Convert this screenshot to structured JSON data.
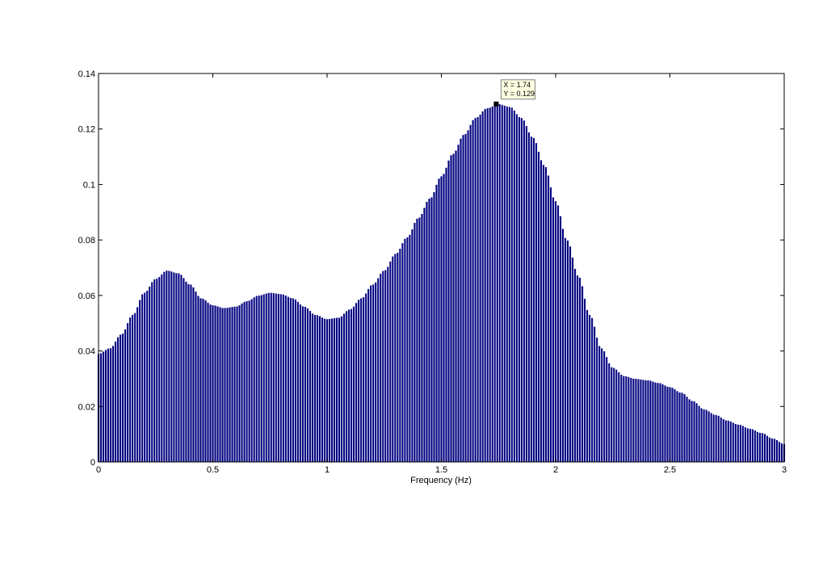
{
  "chart_data": {
    "type": "bar",
    "title": "",
    "xlabel": "Frequency (Hz)",
    "ylabel": "",
    "xlim": [
      0,
      3
    ],
    "ylim": [
      0,
      0.14
    ],
    "xticks": [
      0,
      0.5,
      1,
      1.5,
      2,
      2.5,
      3
    ],
    "xtick_labels": [
      "0",
      "0.5",
      "1",
      "1.5",
      "2",
      "2.5",
      "3"
    ],
    "yticks": [
      0,
      0.02,
      0.04,
      0.06,
      0.08,
      0.1,
      0.12,
      0.14
    ],
    "ytick_labels": [
      "0",
      "0.02",
      "0.04",
      "0.06",
      "0.08",
      "0.1",
      "0.12",
      "0.14"
    ],
    "grid": false,
    "bar_color": "#000080",
    "bar_edge_color": "#ffffff",
    "series": [
      {
        "x": [
          0,
          0.05,
          0.1,
          0.15,
          0.2,
          0.25,
          0.3,
          0.35,
          0.4,
          0.45,
          0.5,
          0.55,
          0.6,
          0.65,
          0.7,
          0.75,
          0.8,
          0.85,
          0.9,
          0.95,
          1,
          1.05,
          1.1,
          1.15,
          1.2,
          1.25,
          1.3,
          1.35,
          1.4,
          1.45,
          1.5,
          1.55,
          1.6,
          1.65,
          1.7,
          1.75,
          1.8,
          1.85,
          1.9,
          1.95,
          2,
          2.05,
          2.1,
          2.15,
          2.2,
          2.25,
          2.3,
          2.35,
          2.4,
          2.45,
          2.5,
          2.55,
          2.6,
          2.65,
          2.7,
          2.75,
          2.8,
          2.85,
          2.9,
          2.95,
          3
        ],
        "values": [
          0.039,
          0.041,
          0.046,
          0.053,
          0.061,
          0.066,
          0.069,
          0.068,
          0.064,
          0.059,
          0.0565,
          0.0555,
          0.056,
          0.058,
          0.06,
          0.061,
          0.0605,
          0.059,
          0.056,
          0.053,
          0.0515,
          0.052,
          0.055,
          0.059,
          0.064,
          0.069,
          0.075,
          0.081,
          0.088,
          0.095,
          0.103,
          0.111,
          0.118,
          0.124,
          0.1275,
          0.129,
          0.128,
          0.124,
          0.117,
          0.107,
          0.094,
          0.08,
          0.067,
          0.053,
          0.041,
          0.034,
          0.031,
          0.03,
          0.0295,
          0.0285,
          0.027,
          0.025,
          0.022,
          0.019,
          0.017,
          0.015,
          0.0135,
          0.012,
          0.0105,
          0.0085,
          0.0065
        ]
      }
    ],
    "datatip": {
      "x_text": "X = 1.74",
      "y_text": "Y = 0.129",
      "x": 1.74,
      "y": 0.129
    }
  }
}
